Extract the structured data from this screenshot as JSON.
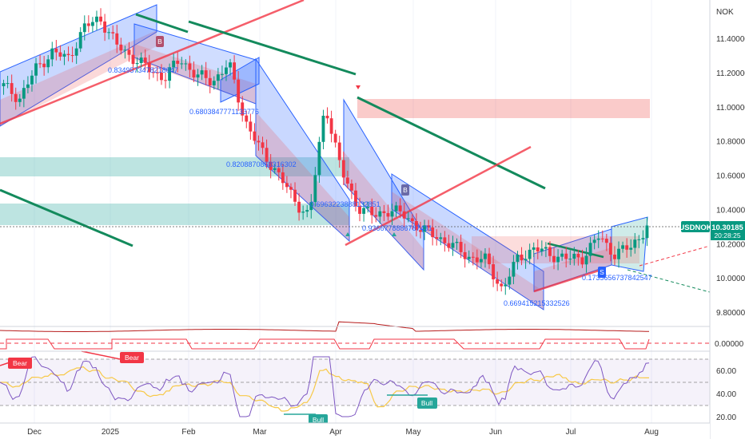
{
  "chart_data": {
    "type": "candlestick",
    "symbol": "USDNOK",
    "currency": "NOK",
    "last_price": "10.30185",
    "countdown": "20:28:25",
    "y_ticks": [
      "11.40000",
      "11.20000",
      "11.00000",
      "10.80000",
      "10.60000",
      "10.40000",
      "10.20000",
      "10.00000",
      "9.80000"
    ],
    "x_ticks": [
      "Dec",
      "2025",
      "Feb",
      "Mar",
      "Apr",
      "May",
      "Jun",
      "Jul",
      "Aug"
    ],
    "ylim": [
      9.78,
      11.62
    ],
    "macd_ticks": [
      "0.00000"
    ],
    "rsi_ticks": [
      "60.00",
      "40.00",
      "20.00"
    ],
    "weekly_close": [
      11.12,
      11.05,
      11.22,
      11.32,
      11.28,
      11.46,
      11.52,
      11.36,
      11.29,
      11.22,
      11.17,
      11.28,
      11.18,
      11.15,
      11.25,
      10.92,
      10.74,
      10.62,
      10.46,
      10.36,
      11.02,
      10.62,
      10.42,
      10.36,
      10.4,
      10.36,
      10.28,
      10.24,
      10.18,
      10.12,
      10.1,
      9.93,
      10.12,
      10.17,
      10.14,
      10.11,
      10.12,
      10.24,
      10.14,
      10.18,
      10.3
    ],
    "fib_labels": [
      "0.8349573478218047",
      "0.6803847771133776",
      "0.8208870868316302",
      "0.6963223888132851",
      "0.9366778886787431",
      "0.669415215332526",
      "0.1735656737842547"
    ],
    "signal_labels": [
      "Bear",
      "Bear",
      "Bull",
      "Bull"
    ],
    "markers": [
      "B",
      "B",
      "S"
    ]
  }
}
